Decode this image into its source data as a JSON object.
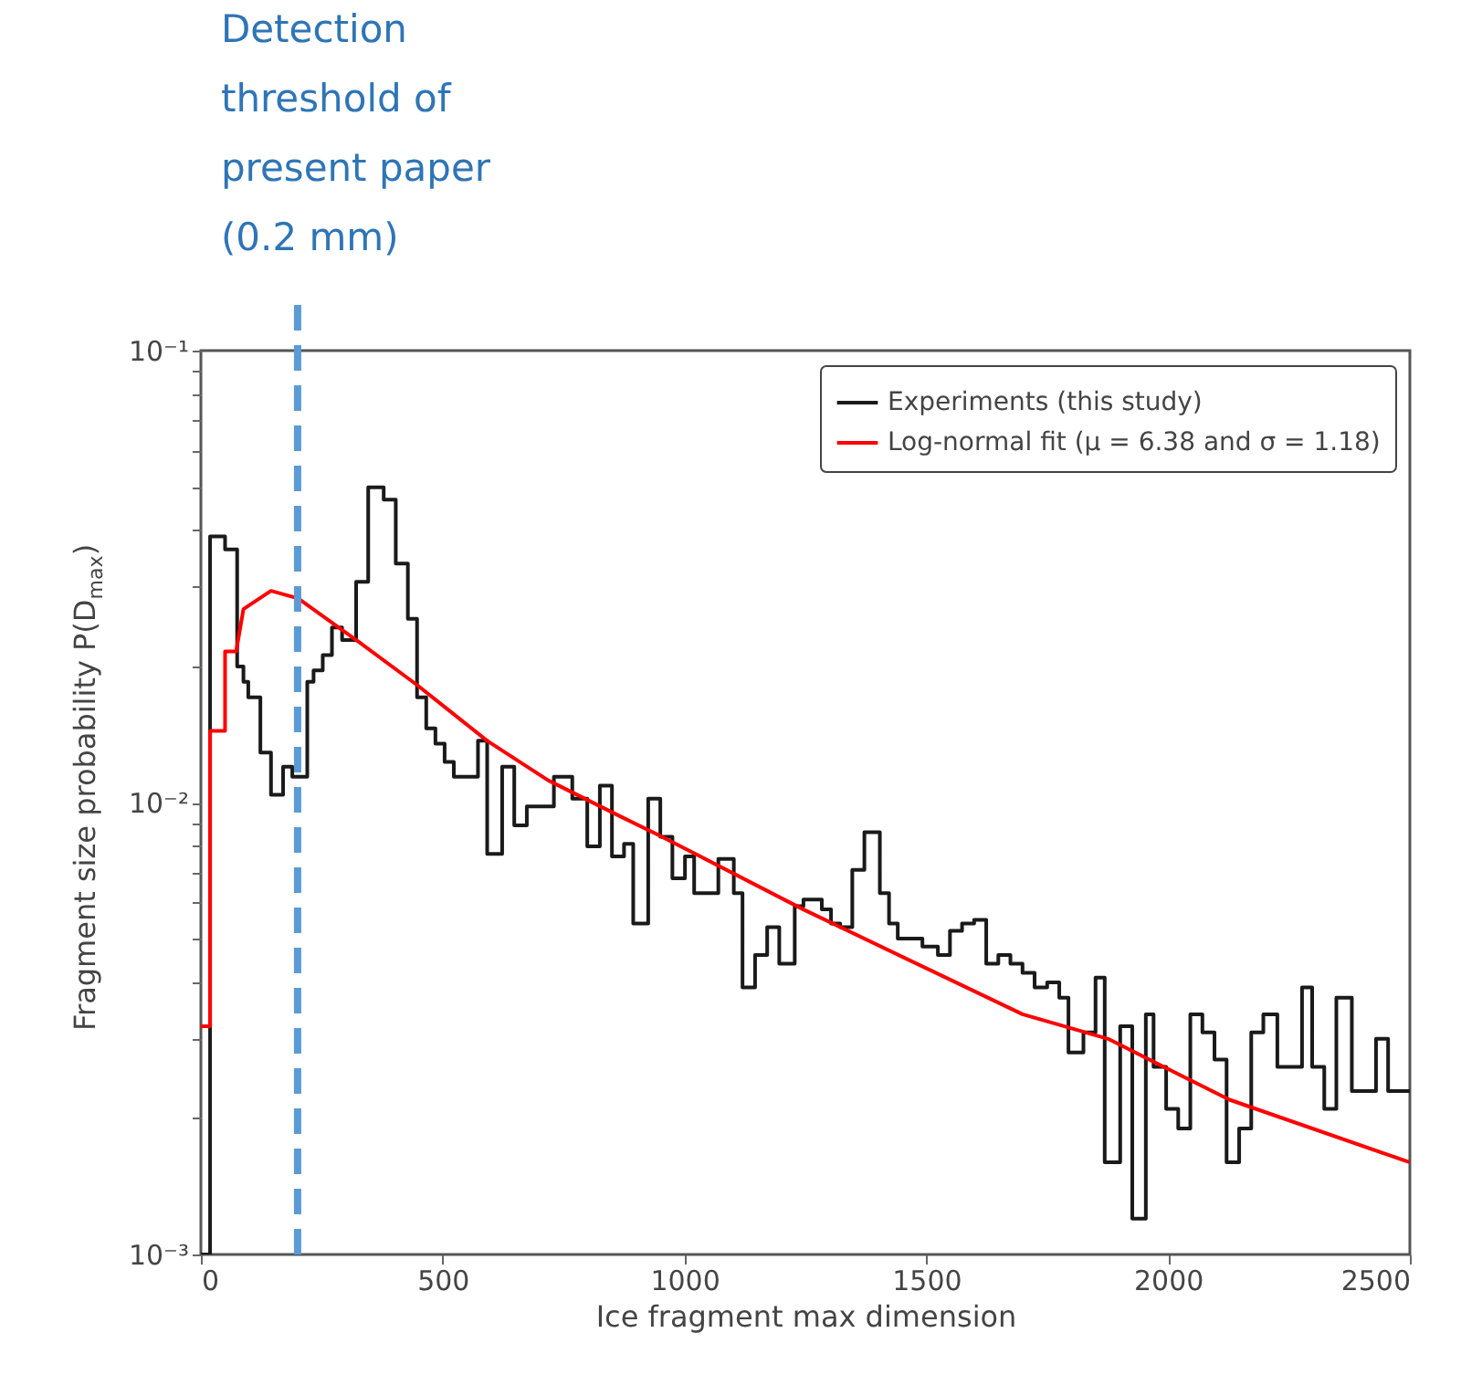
{
  "chart_data": {
    "type": "line",
    "xlabel": "Ice fragment max dimension",
    "ylabel": "Fragment size probability P(D$_{max}$)",
    "log": "y",
    "xlim": [
      0,
      2500
    ],
    "xticks": [
      0,
      500,
      1000,
      1500,
      2000,
      2500
    ],
    "ylim": [
      0.001,
      0.1
    ],
    "yticks": [
      {
        "value": 0.001,
        "label": "10⁻³"
      },
      {
        "value": 0.002,
        "label": null
      },
      {
        "value": 0.003,
        "label": null
      },
      {
        "value": 0.004,
        "label": null
      },
      {
        "value": 0.005,
        "label": null
      },
      {
        "value": 0.006,
        "label": null
      },
      {
        "value": 0.007,
        "label": null
      },
      {
        "value": 0.008,
        "label": null
      },
      {
        "value": 0.009,
        "label": null
      },
      {
        "value": 0.01,
        "label": "10⁻²"
      },
      {
        "value": 0.02,
        "label": null
      },
      {
        "value": 0.03,
        "label": null
      },
      {
        "value": 0.04,
        "label": null
      },
      {
        "value": 0.05,
        "label": null
      },
      {
        "value": 0.06,
        "label": null
      },
      {
        "value": 0.07,
        "label": null
      },
      {
        "value": 0.08,
        "label": null
      },
      {
        "value": 0.09,
        "label": null
      },
      {
        "value": 0.1,
        "label": "10⁻¹"
      }
    ],
    "grid": false,
    "legend": "top right",
    "series": [
      {
        "name": "Experiments (this study)",
        "type": "step",
        "color": "#1a1a1a",
        "x": [
          0,
          19,
          50,
          75,
          88,
          98,
          123,
          145,
          170,
          189,
          220,
          233,
          252,
          271,
          292,
          321,
          346,
          378,
          403,
          428,
          447,
          466,
          485,
          504,
          523,
          573,
          592,
          623,
          648,
          674,
          730,
          768,
          799,
          825,
          850,
          875,
          894,
          925,
          950,
          975,
          1001,
          1020,
          1070,
          1102,
          1120,
          1146,
          1171,
          1196,
          1228,
          1246,
          1284,
          1303,
          1322,
          1347,
          1372,
          1404,
          1423,
          1441,
          1492,
          1524,
          1549,
          1574,
          1599,
          1624,
          1649,
          1674,
          1699,
          1724,
          1750,
          1775,
          1794,
          1825,
          1850,
          1869,
          1901,
          1926,
          1954,
          1970,
          1996,
          2021,
          2046,
          2071,
          2096,
          2121,
          2147,
          2172,
          2197,
          2226,
          2277,
          2298,
          2323,
          2348,
          2380,
          2430,
          2455,
          2500
        ],
        "values": [
          0.001,
          0.0388,
          0.0363,
          0.02,
          0.0185,
          0.0171,
          0.0129,
          0.0104,
          0.012,
          0.0114,
          0.0185,
          0.0196,
          0.0212,
          0.0244,
          0.0229,
          0.0308,
          0.0498,
          0.0468,
          0.0338,
          0.0255,
          0.0171,
          0.0146,
          0.0135,
          0.0123,
          0.0114,
          0.0137,
          0.0077,
          0.012,
          0.0089,
          0.0098,
          0.0114,
          0.0102,
          0.008,
          0.0109,
          0.0076,
          0.0081,
          0.0054,
          0.0102,
          0.0084,
          0.0068,
          0.0076,
          0.0063,
          0.0075,
          0.0063,
          0.0039,
          0.0046,
          0.0053,
          0.0044,
          0.0059,
          0.0061,
          0.0058,
          0.0054,
          0.0053,
          0.0071,
          0.0086,
          0.0063,
          0.0054,
          0.005,
          0.0048,
          0.0046,
          0.0052,
          0.0054,
          0.0055,
          0.0044,
          0.0046,
          0.0044,
          0.0042,
          0.0039,
          0.004,
          0.0037,
          0.0028,
          0.0031,
          0.0041,
          0.0016,
          0.0032,
          0.0012,
          0.0034,
          0.0026,
          0.0021,
          0.0019,
          0.0034,
          0.0031,
          0.0027,
          0.0016,
          0.0019,
          0.0031,
          0.0034,
          0.0026,
          0.0039,
          0.0026,
          0.0021,
          0.0037,
          0.0023,
          0.003,
          0.0023,
          0.0023
        ]
      },
      {
        "name": "Log-normal fit (μ = 6.38 and σ = 1.18)",
        "type": "line",
        "color": "#ff0000",
        "x": [
          0,
          19,
          19,
          50,
          50,
          73,
          88,
          145,
          201,
          328,
          447,
          592,
          718,
          869,
          944,
          1246,
          1699,
          1876,
          2127,
          2499
        ],
        "values": [
          0.0032,
          0.0032,
          0.0144,
          0.0144,
          0.0216,
          0.0216,
          0.0268,
          0.0294,
          0.0283,
          0.0226,
          0.0182,
          0.0137,
          0.0112,
          0.0093,
          0.0085,
          0.0058,
          0.0034,
          0.003,
          0.0022,
          0.0016
        ]
      }
    ],
    "ref_lines": [
      {
        "axis": "x",
        "value": 200,
        "label": "Detection threshold of present paper (0.2 mm)",
        "color": "#5b9bd5",
        "line_style": "dashed"
      }
    ]
  }
}
